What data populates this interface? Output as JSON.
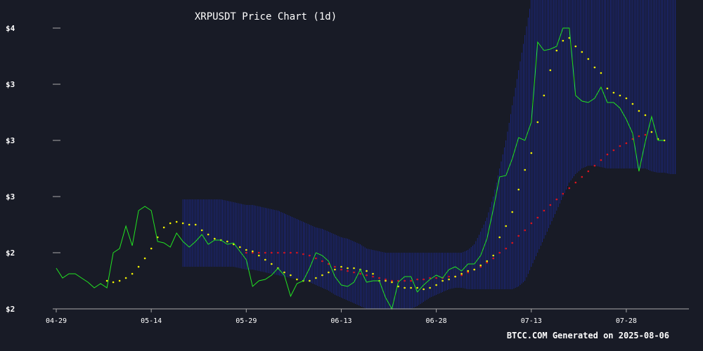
{
  "chart_data": {
    "type": "line",
    "title": "XRPUSDT Price Chart (1d)",
    "footer": "BTCC.COM Generated on 2025-08-06",
    "xlabel": "",
    "ylabel": "",
    "x_tick_labels": [
      "04-29",
      "05-14",
      "05-29",
      "06-13",
      "06-28",
      "07-13",
      "07-28"
    ],
    "y_tick_labels": [
      "$2",
      "$2",
      "$3",
      "$3",
      "$3",
      "$4"
    ],
    "y_tick_values": [
      2.0,
      2.4,
      2.8,
      3.2,
      3.6,
      4.0
    ],
    "ylim": [
      2.0,
      4.0
    ],
    "grid": false,
    "legend": "none",
    "colors": {
      "background": "#181b26",
      "price_line": "#22e422",
      "band_stripes": "#1e2fbf",
      "ma_short": "#f5f500",
      "ma_long": "#e0141e",
      "axis_text": "#ffffff",
      "axis_line": "#aaaaaa"
    },
    "series": [
      {
        "key": "price",
        "style": "line",
        "start_date": "04-29",
        "values": [
          2.29,
          2.22,
          2.25,
          2.25,
          2.22,
          2.19,
          2.15,
          2.18,
          2.15,
          2.4,
          2.43,
          2.59,
          2.45,
          2.7,
          2.73,
          2.7,
          2.48,
          2.47,
          2.44,
          2.54,
          2.48,
          2.44,
          2.48,
          2.53,
          2.46,
          2.49,
          2.49,
          2.46,
          2.47,
          2.41,
          2.35,
          2.16,
          2.2,
          2.21,
          2.24,
          2.29,
          2.24,
          2.09,
          2.18,
          2.2,
          2.29,
          2.4,
          2.38,
          2.34,
          2.23,
          2.17,
          2.16,
          2.19,
          2.28,
          2.19,
          2.2,
          2.2,
          2.08,
          2.0,
          2.19,
          2.23,
          2.23,
          2.12,
          2.17,
          2.21,
          2.24,
          2.22,
          2.28,
          2.3,
          2.27,
          2.32,
          2.32,
          2.38,
          2.5,
          2.71,
          2.94,
          2.95,
          3.07,
          3.22,
          3.2,
          3.33,
          3.9,
          3.84,
          3.85,
          3.87,
          4.0,
          4.0,
          3.52,
          3.48,
          3.47,
          3.5,
          3.58,
          3.47,
          3.47,
          3.43,
          3.35,
          3.25,
          2.98,
          3.19,
          3.37,
          3.2,
          3.2
        ],
        "note": "daily close"
      },
      {
        "key": "ma_short",
        "style": "dots",
        "start_date": "05-07",
        "values": [
          2.2,
          2.19,
          2.2,
          2.22,
          2.25,
          2.3,
          2.36,
          2.43,
          2.51,
          2.58,
          2.61,
          2.62,
          2.61,
          2.6,
          2.6,
          2.56,
          2.53,
          2.5,
          2.49,
          2.48,
          2.46,
          2.44,
          2.42,
          2.41,
          2.38,
          2.35,
          2.32,
          2.29,
          2.26,
          2.24,
          2.21,
          2.2,
          2.2,
          2.22,
          2.24,
          2.26,
          2.28,
          2.3,
          2.29,
          2.29,
          2.28,
          2.27,
          2.25,
          2.2,
          2.2,
          2.19,
          2.16,
          2.15,
          2.15,
          2.15,
          2.14,
          2.15,
          2.17,
          2.2,
          2.21,
          2.23,
          2.25,
          2.27,
          2.28,
          2.31,
          2.34,
          2.38,
          2.51,
          2.59,
          2.69,
          2.85,
          2.99,
          3.11,
          3.33,
          3.52,
          3.7,
          3.84,
          3.91,
          3.93,
          3.87,
          3.83,
          3.78,
          3.72,
          3.68,
          3.57,
          3.54,
          3.52,
          3.5,
          3.46,
          3.41,
          3.38,
          3.26,
          3.21,
          3.2
        ],
        "note": "yellow dotted moving average"
      },
      {
        "key": "ma_long",
        "style": "dots",
        "start_date": "05-29",
        "values": [
          2.4,
          2.4,
          2.4,
          2.4,
          2.4,
          2.4,
          2.4,
          2.4,
          2.4,
          2.39,
          2.38,
          2.36,
          2.34,
          2.32,
          2.3,
          2.28,
          2.27,
          2.26,
          2.25,
          2.24,
          2.23,
          2.22,
          2.21,
          2.2,
          2.2,
          2.2,
          2.2,
          2.21,
          2.21,
          2.22,
          2.22,
          2.22,
          2.23,
          2.23,
          2.24,
          2.26,
          2.28,
          2.3,
          2.33,
          2.36,
          2.4,
          2.43,
          2.47,
          2.52,
          2.56,
          2.61,
          2.65,
          2.7,
          2.74,
          2.78,
          2.82,
          2.86,
          2.9,
          2.94,
          2.98,
          3.02,
          3.06,
          3.1,
          3.13,
          3.16,
          3.18,
          3.21,
          3.23,
          3.24
        ],
        "note": "red dotted moving average"
      }
    ],
    "bands": {
      "style": "vertical stripes",
      "start_date": "05-19",
      "upper": [
        2.78,
        2.78,
        2.78,
        2.78,
        2.78,
        2.78,
        2.78,
        2.77,
        2.76,
        2.75,
        2.74,
        2.74,
        2.73,
        2.72,
        2.71,
        2.7,
        2.68,
        2.66,
        2.64,
        2.62,
        2.6,
        2.58,
        2.57,
        2.55,
        2.53,
        2.51,
        2.5,
        2.48,
        2.46,
        2.43,
        2.42,
        2.41,
        2.4,
        2.4,
        2.4,
        2.4,
        2.4,
        2.4,
        2.4,
        2.4,
        2.4,
        2.4,
        2.4,
        2.4,
        2.4,
        2.42,
        2.46,
        2.55,
        2.65,
        2.8,
        3.0,
        3.2,
        3.45,
        3.7,
        3.95,
        4.2,
        4.2,
        4.2,
        4.2,
        4.2,
        4.2,
        4.2,
        4.2,
        4.2,
        4.2,
        4.2,
        4.2,
        4.2,
        4.2,
        4.2,
        4.2,
        4.2,
        4.2,
        4.2,
        4.2,
        4.2,
        4.2,
        4.2,
        4.2
      ],
      "lower": [
        2.3,
        2.3,
        2.3,
        2.3,
        2.3,
        2.3,
        2.3,
        2.3,
        2.3,
        2.29,
        2.28,
        2.28,
        2.27,
        2.26,
        2.25,
        2.24,
        2.23,
        2.22,
        2.21,
        2.2,
        2.19,
        2.17,
        2.15,
        2.13,
        2.1,
        2.08,
        2.06,
        2.04,
        2.02,
        2.0,
        2.0,
        2.0,
        2.0,
        2.0,
        2.0,
        2.0,
        2.0,
        2.02,
        2.05,
        2.08,
        2.1,
        2.12,
        2.14,
        2.15,
        2.15,
        2.14,
        2.14,
        2.14,
        2.14,
        2.14,
        2.14,
        2.14,
        2.14,
        2.16,
        2.2,
        2.3,
        2.4,
        2.5,
        2.6,
        2.7,
        2.8,
        2.9,
        2.96,
        3.0,
        3.02,
        3.02,
        3.01,
        3.0,
        3.0,
        3.0,
        3.0,
        3.0,
        3.0,
        3.0,
        2.98,
        2.97,
        2.97,
        2.96,
        2.96
      ]
    }
  }
}
